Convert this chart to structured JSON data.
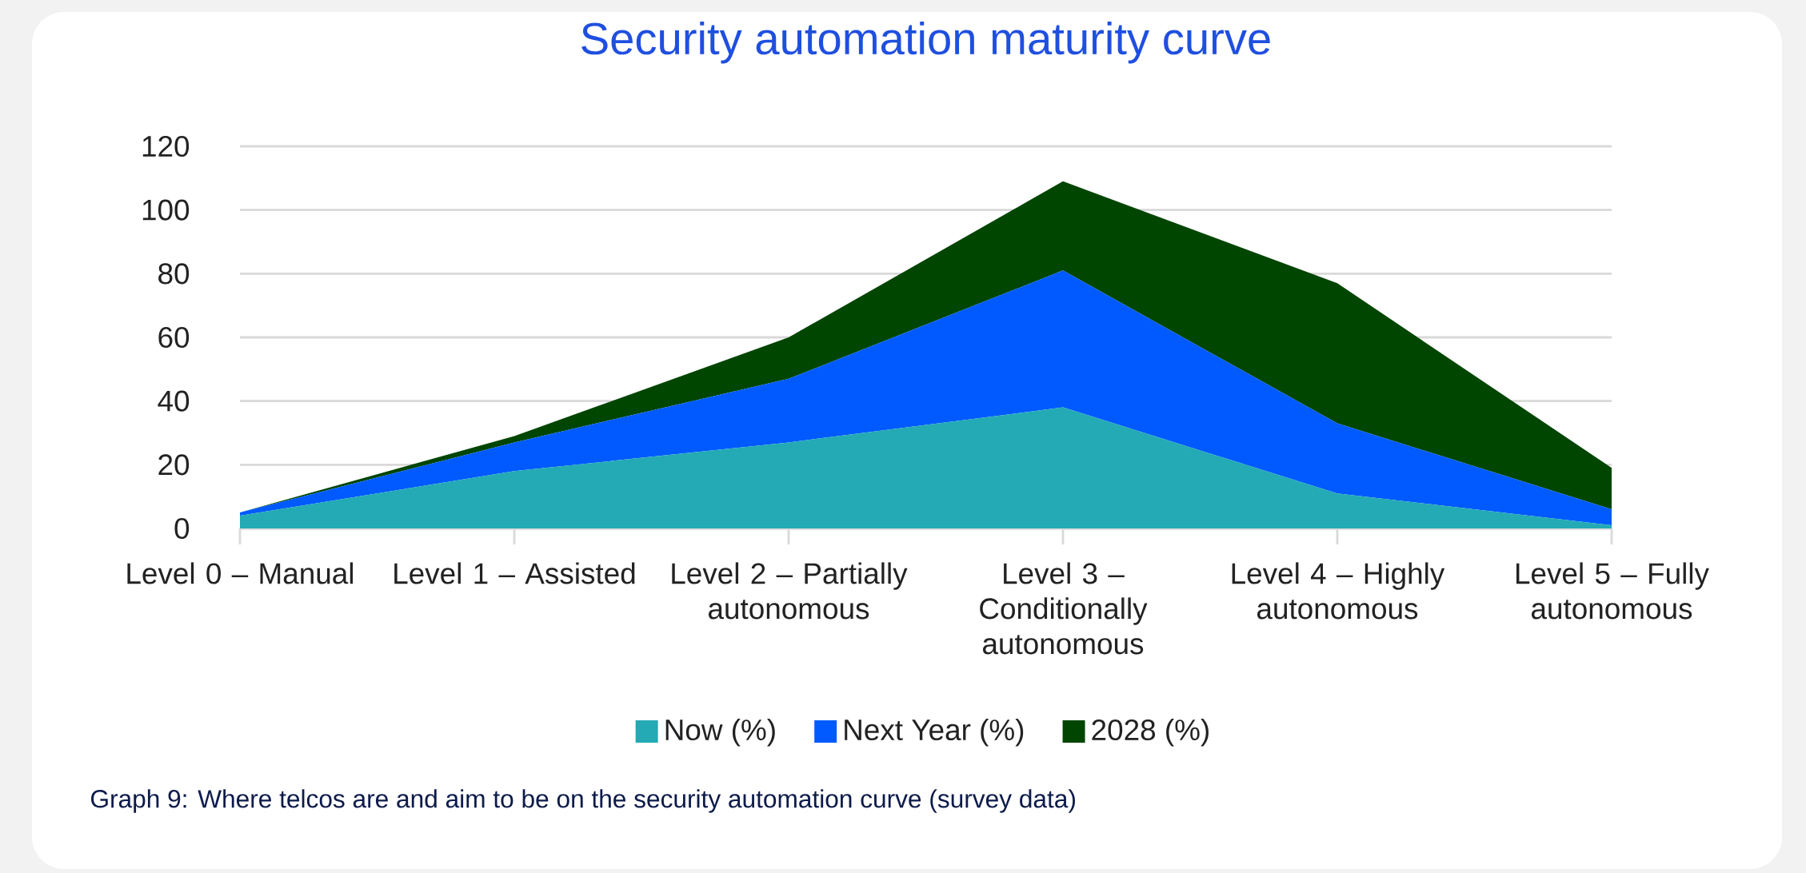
{
  "chart_data": {
    "type": "area",
    "title": "Security automation maturity curve",
    "categories": [
      "Level 0 – Manual",
      "Level 1 – Assisted",
      "Level 2 – Partially autonomous",
      "Level 3 – Conditionally autonomous",
      "Level 4 – Highly autonomous",
      "Level 5 – Fully autonomous"
    ],
    "series": [
      {
        "name": "Now (%)",
        "color": "#23aab5",
        "values": [
          4,
          18,
          27,
          38,
          11,
          1
        ]
      },
      {
        "name": "Next Year (%)",
        "color": "#005aff",
        "values": [
          1,
          9,
          20,
          43,
          22,
          5
        ]
      },
      {
        "name": "2028 (%)",
        "color": "#004500",
        "values": [
          0,
          2,
          13,
          28,
          44,
          13
        ]
      }
    ],
    "stacked": true,
    "ylim": [
      0,
      120
    ],
    "yticks": [
      0,
      20,
      40,
      60,
      80,
      100,
      120
    ],
    "grid": "y",
    "legend": "bottom",
    "annotations": [
      "Graph 9: Where telcos are and aim to be on the security automation curve (survey data)"
    ]
  }
}
